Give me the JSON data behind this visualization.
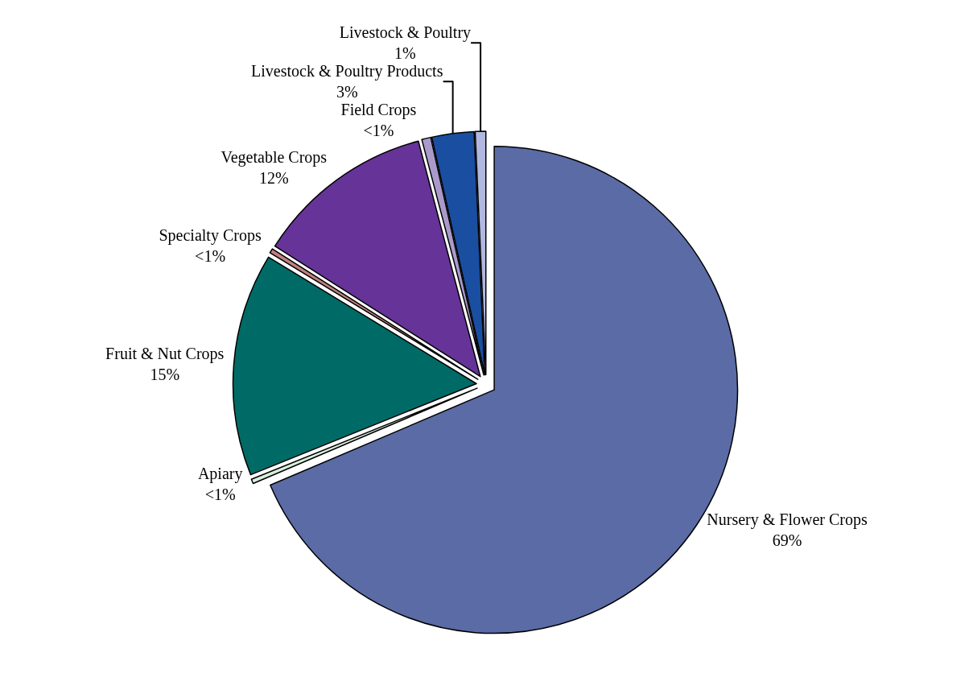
{
  "chart_data": {
    "type": "pie",
    "categories": [
      "Nursery & Flower Crops",
      "Apiary",
      "Fruit & Nut Crops",
      "Specialty Crops",
      "Vegetable Crops",
      "Field Crops",
      "Livestock & Poultry Products",
      "Livestock & Poultry"
    ],
    "values": [
      68.6,
      0.3,
      14.8,
      0.3,
      11.9,
      0.6,
      2.8,
      0.7
    ],
    "value_labels": [
      "69%",
      "<1%",
      "15%",
      "<1%",
      "12%",
      "<1%",
      "3%",
      "1%"
    ],
    "colors": [
      "#5a6ba5",
      "#d8eedc",
      "#006b66",
      "#c08080",
      "#663399",
      "#a99acb",
      "#1a4ea0",
      "#b0b8e0"
    ],
    "legend": false
  }
}
